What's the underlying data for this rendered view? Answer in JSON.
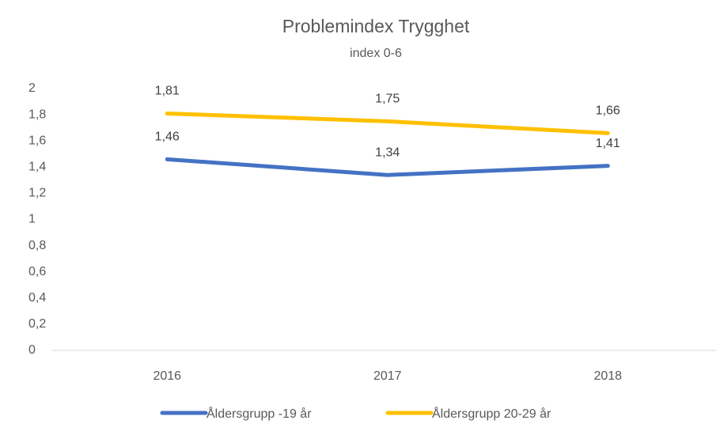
{
  "chart_data": {
    "type": "line",
    "title": "Problemindex Trygghet",
    "subtitle": "index 0-6",
    "categories": [
      "2016",
      "2017",
      "2018"
    ],
    "series": [
      {
        "name": "Åldersgrupp -19 år",
        "color": "#4472c4",
        "values": [
          1.46,
          1.34,
          1.41
        ],
        "value_labels": [
          "1,46",
          "1,34",
          "1,41"
        ]
      },
      {
        "name": "Åldersgrupp 20-29 år",
        "color": "#ffc000",
        "values": [
          1.81,
          1.75,
          1.66
        ],
        "value_labels": [
          "1,81",
          "1,75",
          "1,66"
        ]
      }
    ],
    "ylim": [
      0,
      2
    ],
    "yticks": [
      0,
      {
        "value": 0.2,
        "label": "0,2"
      },
      {
        "value": 0.4,
        "label": "0,4"
      },
      {
        "value": 0.6,
        "label": "0,6"
      },
      {
        "value": 0.8,
        "label": "0,8"
      },
      1,
      {
        "value": 1.2,
        "label": "1,2"
      },
      {
        "value": 1.4,
        "label": "1,4"
      },
      {
        "value": 1.6,
        "label": "1,6"
      },
      {
        "value": 1.8,
        "label": "1,8"
      },
      2
    ],
    "legend": "bottom"
  }
}
